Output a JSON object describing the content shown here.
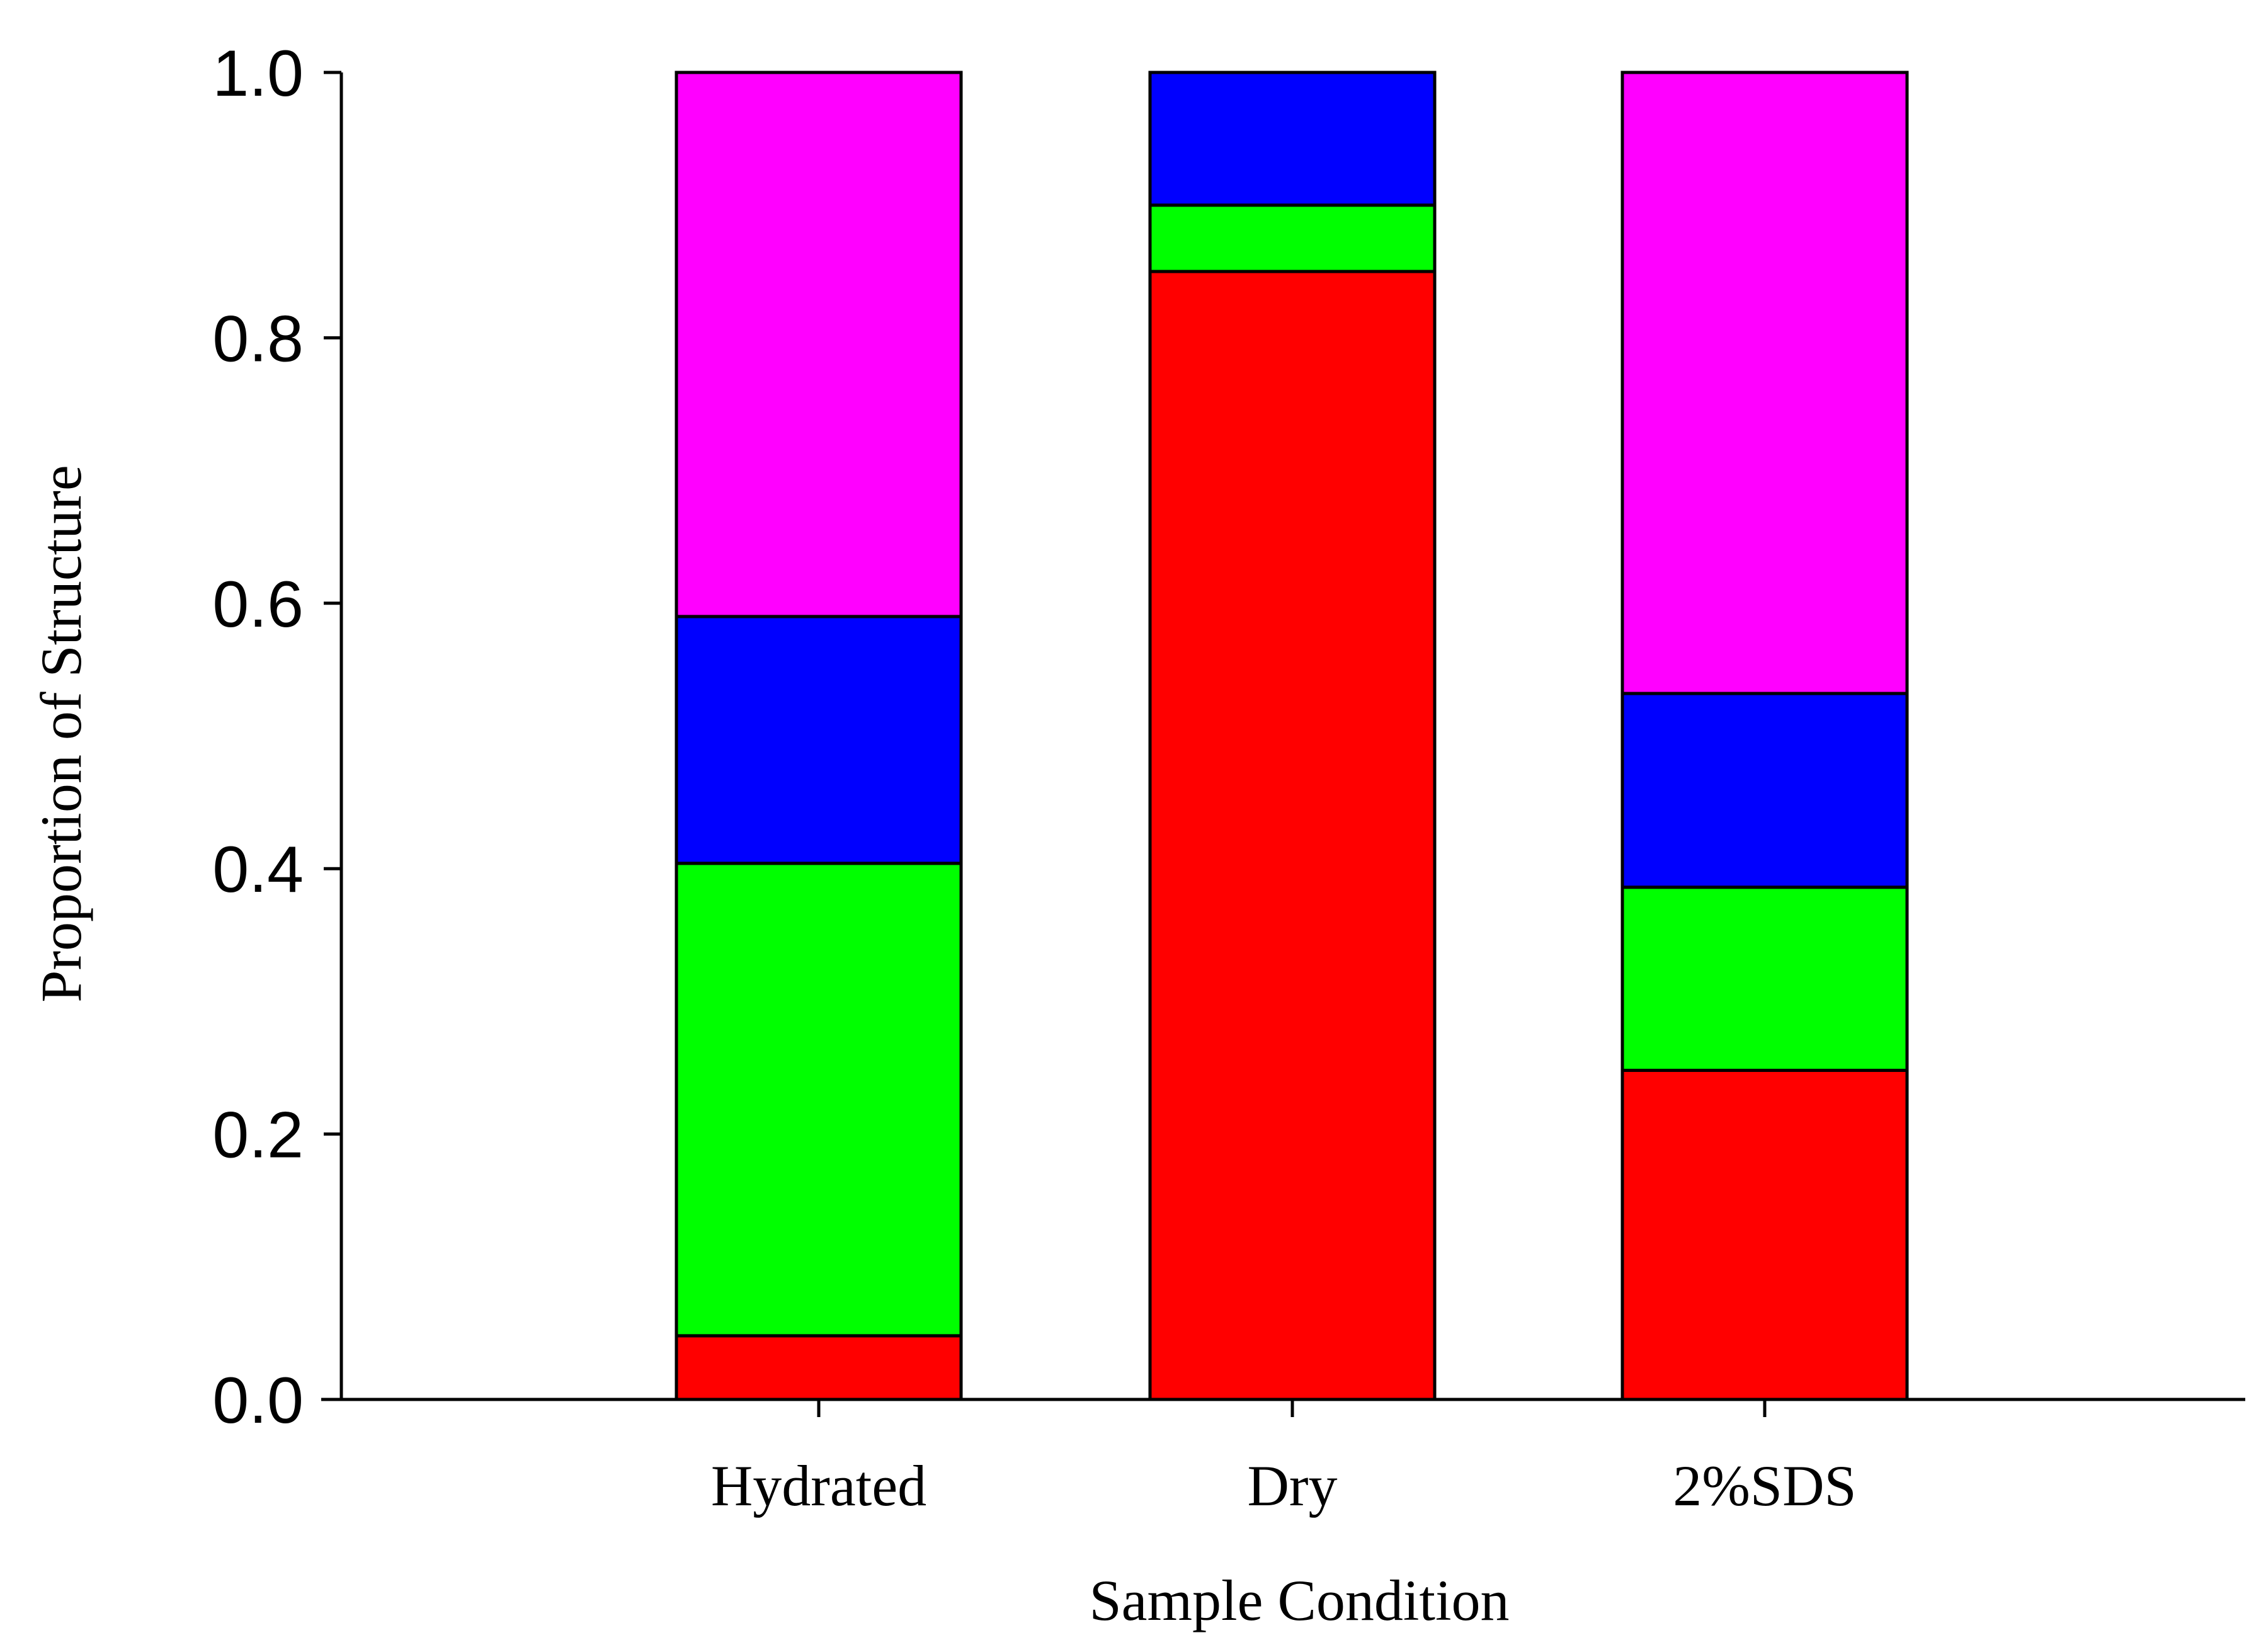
{
  "chart_data": {
    "type": "bar",
    "stacked": true,
    "title": "",
    "xlabel": "Sample Condition",
    "ylabel": "Proportion of Structure",
    "categories": [
      "Hydrated",
      "Dry",
      "2%SDS"
    ],
    "ylim": [
      0,
      1.0
    ],
    "yticks": [
      "0.0",
      "0.2",
      "0.4",
      "0.6",
      "0.8",
      "1.0"
    ],
    "series": [
      {
        "name": "red segment",
        "color": "#ff0000",
        "values": [
          0.048,
          0.85,
          0.248
        ]
      },
      {
        "name": "green segment",
        "color": "#00ff00",
        "values": [
          0.356,
          0.05,
          0.138
        ]
      },
      {
        "name": "blue segment",
        "color": "#0000ff",
        "values": [
          0.186,
          0.1,
          0.146
        ]
      },
      {
        "name": "magenta segment",
        "color": "#ff00ff",
        "values": [
          0.41,
          0.0,
          0.468
        ]
      }
    ]
  }
}
